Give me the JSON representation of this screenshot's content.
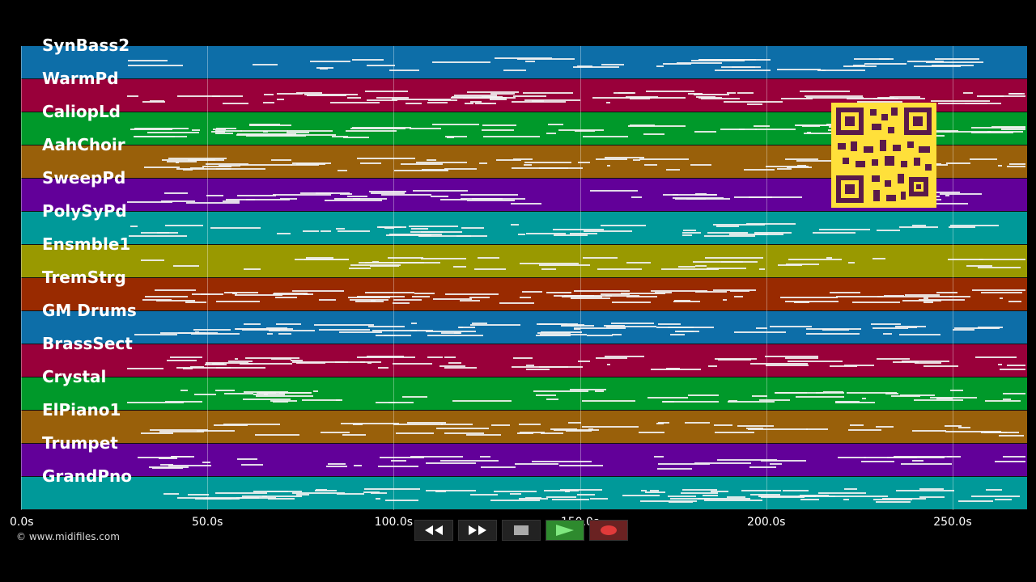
{
  "tracks": [
    {
      "name": "SynBass2",
      "color": "#0d6ea8"
    },
    {
      "name": "WarmPd",
      "color": "#99003a"
    },
    {
      "name": "CaliopLd",
      "color": "#00992a"
    },
    {
      "name": "AahChoir",
      "color": "#99600a"
    },
    {
      "name": "SweepPd",
      "color": "#620099"
    },
    {
      "name": "PolySyPd",
      "color": "#009999"
    },
    {
      "name": "Ensmble1",
      "color": "#999900"
    },
    {
      "name": "TremStrg",
      "color": "#992a00"
    },
    {
      "name": "GM Drums",
      "color": "#0d6ea8"
    },
    {
      "name": "BrassSect",
      "color": "#99003a"
    },
    {
      "name": "Crystal",
      "color": "#00992a"
    },
    {
      "name": "ElPiano1",
      "color": "#99600a"
    },
    {
      "name": "Trumpet",
      "color": "#620099"
    },
    {
      "name": "GrandPno",
      "color": "#009999"
    }
  ],
  "timeline": {
    "max_seconds": 270,
    "ticks": [
      "0.0s",
      "50.0s",
      "100.0s",
      "150.0s",
      "200.0s",
      "250.0s"
    ],
    "tick_values": [
      0,
      50,
      100,
      150,
      200,
      250
    ]
  },
  "copyright": "© www.midifiles.com",
  "transport": {
    "rewind_icon": "rewind-icon",
    "forward_icon": "fast-forward-icon",
    "stop_icon": "stop-icon",
    "play_icon": "play-icon",
    "record_icon": "record-icon"
  },
  "qr_icon": "qr-code-icon"
}
